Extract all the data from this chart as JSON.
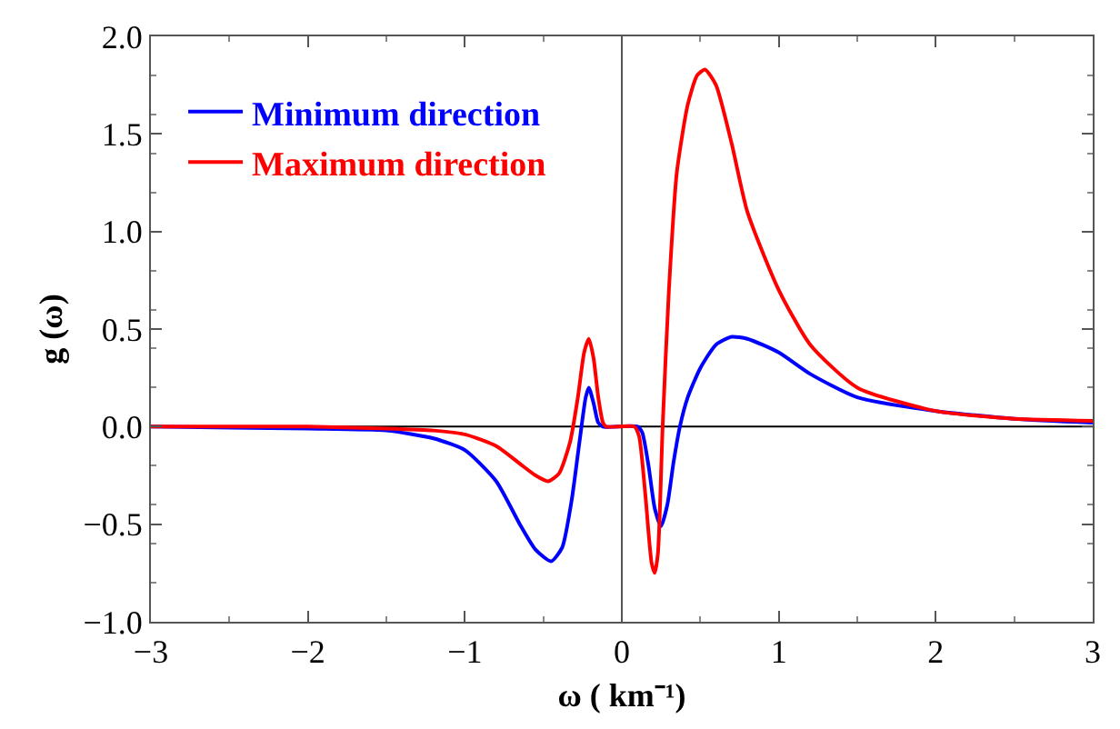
{
  "chart_data": {
    "type": "line",
    "xlabel": "ω ( km⁻¹)",
    "ylabel": "g (ω)",
    "xlim": [
      -3,
      3
    ],
    "ylim": [
      -1,
      2
    ],
    "xticks": [
      {
        "value": -3,
        "label": "−3"
      },
      {
        "value": -2,
        "label": "−2"
      },
      {
        "value": -1,
        "label": "−1"
      },
      0,
      1,
      2,
      3
    ],
    "yticks": [
      {
        "value": -1,
        "label": "−1.0"
      },
      {
        "value": -0.5,
        "label": "−0.5"
      },
      {
        "value": 0,
        "label": "0.0"
      },
      {
        "value": 0.5,
        "label": "0.5"
      },
      {
        "value": 1,
        "label": "1.0"
      },
      {
        "value": 1.5,
        "label": "1.5"
      },
      {
        "value": 2,
        "label": "2.0"
      }
    ],
    "grid": false,
    "legend": "top left",
    "marker": "none",
    "line_style": "solid",
    "ref_lines": [
      {
        "axis": "x",
        "value": 0,
        "color": "#555555"
      },
      {
        "axis": "y",
        "value": 0,
        "color": "#000000"
      }
    ],
    "series": [
      {
        "name": "Minimum direction",
        "color": "#0000ff",
        "x": [
          -3,
          -2,
          -1.5,
          -1.2,
          -1,
          -0.8,
          -0.65,
          -0.55,
          -0.45,
          -0.38,
          -0.32,
          -0.27,
          -0.23,
          -0.21,
          -0.18,
          -0.15,
          -0.12,
          0.1,
          0.13,
          0.17,
          0.21,
          0.25,
          0.29,
          0.33,
          0.37,
          0.42,
          0.5,
          0.6,
          0.7,
          0.8,
          1.0,
          1.2,
          1.5,
          2,
          2.5,
          3
        ],
        "values": [
          0,
          -0.01,
          -0.02,
          -0.06,
          -0.12,
          -0.28,
          -0.5,
          -0.63,
          -0.69,
          -0.62,
          -0.38,
          -0.08,
          0.15,
          0.2,
          0.12,
          0.02,
          0,
          0,
          -0.03,
          -0.2,
          -0.42,
          -0.51,
          -0.4,
          -0.18,
          0,
          0.15,
          0.3,
          0.42,
          0.46,
          0.45,
          0.38,
          0.27,
          0.15,
          0.08,
          0.04,
          0.02
        ]
      },
      {
        "name": "Maximum direction",
        "color": "#ff0000",
        "x": [
          -3,
          -2,
          -1.5,
          -1.2,
          -1,
          -0.8,
          -0.65,
          -0.55,
          -0.47,
          -0.4,
          -0.33,
          -0.28,
          -0.24,
          -0.21,
          -0.18,
          -0.15,
          -0.12,
          -0.1,
          0.08,
          0.11,
          0.15,
          0.19,
          0.21,
          0.23,
          0.26,
          0.3,
          0.35,
          0.42,
          0.48,
          0.53,
          0.6,
          0.7,
          0.8,
          1.0,
          1.2,
          1.5,
          2,
          2.5,
          3
        ],
        "values": [
          0,
          0,
          -0.01,
          -0.02,
          -0.04,
          -0.1,
          -0.19,
          -0.25,
          -0.28,
          -0.24,
          -0.08,
          0.15,
          0.38,
          0.45,
          0.35,
          0.15,
          0.02,
          0,
          0,
          -0.05,
          -0.35,
          -0.7,
          -0.75,
          -0.65,
          0,
          0.7,
          1.3,
          1.65,
          1.8,
          1.83,
          1.75,
          1.45,
          1.1,
          0.7,
          0.42,
          0.2,
          0.08,
          0.04,
          0.03
        ]
      }
    ]
  }
}
